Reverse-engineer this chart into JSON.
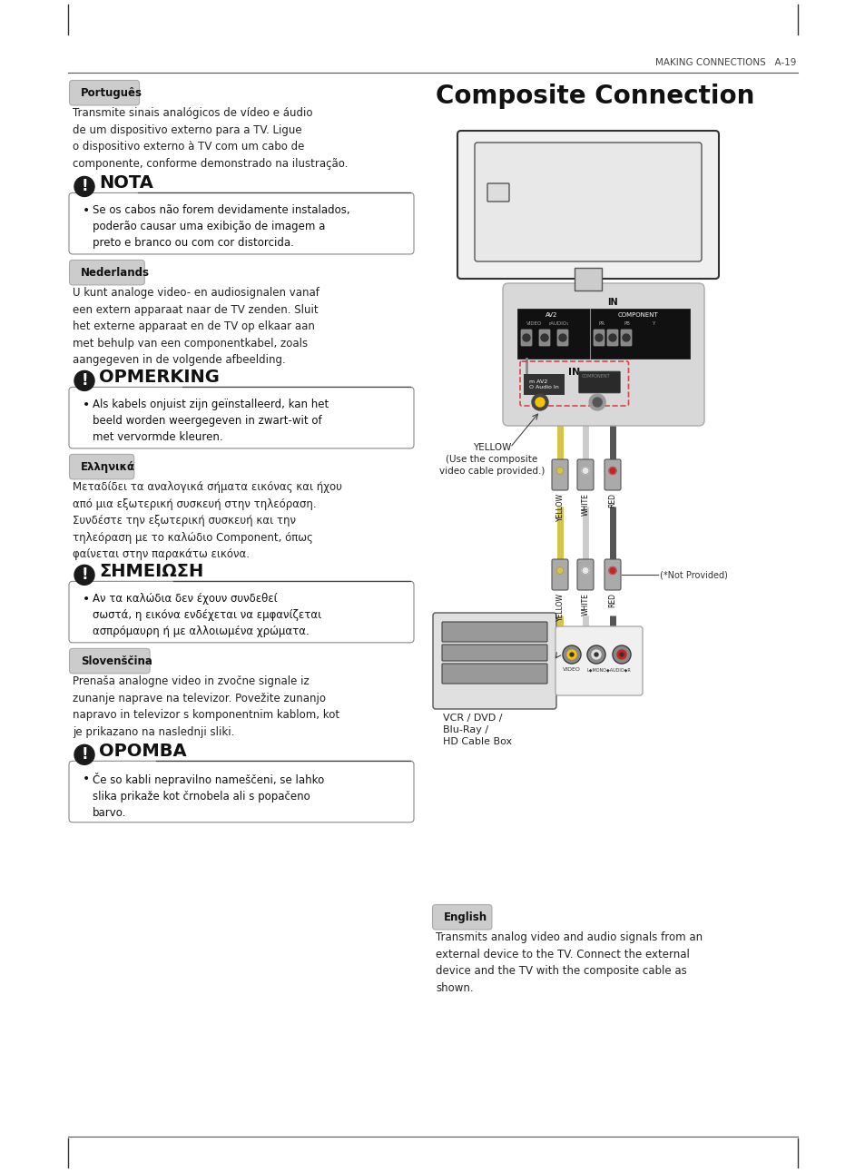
{
  "title": "Composite Connection",
  "header_right": "MAKING CONNECTIONS   A-19",
  "bg_color": "#ffffff",
  "sections_left": [
    {
      "lang": "Português",
      "body": "Transmite sinais analógicos de vídeo e áudio\nde um dispositivo externo para a TV. Ligue\no dispositivo externo à TV com um cabo de\ncomponente, conforme demonstrado na ilustração.",
      "note_title": "NOTA",
      "note_body": "Se os cabos não forem devidamente instalados,\npoderão causar uma exibição de imagem a\npreto e branco ou com cor distorcida."
    },
    {
      "lang": "Nederlands",
      "body": "U kunt analoge video- en audiosignalen vanaf\neen extern apparaat naar de TV zenden. Sluit\nhet externe apparaat en de TV op elkaar aan\nmet behulp van een componentkabel, zoals\naangegeven in de volgende afbeelding.",
      "note_title": "OPMERKING",
      "note_body": "Als kabels onjuist zijn geïnstalleerd, kan het\nbeeld worden weergegeven in zwart-wit of\nmet vervormde kleuren."
    },
    {
      "lang": "Ελληνικά",
      "body": "Μεταδίδει τα αναλογικά σήματα εικόνας και ήχου\nαπό μια εξωτερική συσκευή στην τηλεόραση.\nΣυνδέστε την εξωτερική συσκευή και την\nτηλεόραση με το καλώδιο Component, όπως\nφαίνεται στην παρακάτω εικόνα.",
      "note_title": "ΣΗΜΕΙΩΣΗ",
      "note_body": "Αν τα καλώδια δεν έχουν συνδεθεί\nσωστά, η εικόνα ενδέχεται να εμφανίζεται\nασπρόμαυρη ή με αλλοιωμένα χρώματα."
    },
    {
      "lang": "Slovenščina",
      "body": "Prenaša analogne video in zvočne signale iz\nzunanje naprave na televizor. Povežite zunanjo\nnapravo in televizor s komponentnim kablom, kot\nje prikazano na naslednji sliki.",
      "note_title": "OPOMBA",
      "note_body": "Če so kabli nepravilno nameščeni, se lahko\nslika prikaže kot črnobela ali s popačeno\nbarvo."
    }
  ],
  "right_lang": "English",
  "right_body": "Transmits analog video and audio signals from an\nexternal device to the TV. Connect the external\ndevice and the TV with the composite cable as\nshown.",
  "yellow_label": "YELLOW\n(Use the composite\nvideo cable provided.)",
  "not_provided": "(*Not Provided)",
  "vcr_label": "VCR / DVD /\nBlu-Ray /\nHD Cable Box"
}
